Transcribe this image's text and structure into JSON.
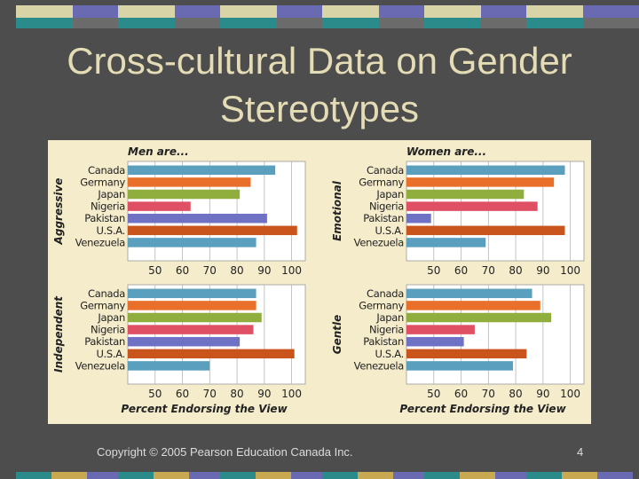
{
  "slide": {
    "title_line1": "Cross-cultural Data on Gender",
    "title_line2": "Stereotypes",
    "copyright": "Copyright © 2005 Pearson Education Canada Inc.",
    "page_number": "4"
  },
  "colors": {
    "background": "#4d4d4d",
    "title": "#e4dcb4",
    "figure_bg": "#f5eccc",
    "deco": [
      "#2b8a8a",
      "#6a6ab2",
      "#d9d4a8",
      "#c8a850"
    ]
  },
  "chart_data": [
    {
      "type": "bar",
      "orientation": "horizontal",
      "title": "Men are...",
      "ylabel": "Aggressive",
      "xlabel": "",
      "categories": [
        "Canada",
        "Germany",
        "Japan",
        "Nigeria",
        "Pakistan",
        "U.S.A.",
        "Venezuela"
      ],
      "values": [
        94,
        85,
        81,
        63,
        91,
        102,
        87
      ],
      "xlim": [
        40,
        105
      ],
      "xticks": [
        50,
        60,
        70,
        80,
        90,
        100
      ],
      "grid": true
    },
    {
      "type": "bar",
      "orientation": "horizontal",
      "title": "Women are...",
      "ylabel": "Emotional",
      "xlabel": "",
      "categories": [
        "Canada",
        "Germany",
        "Japan",
        "Nigeria",
        "Pakistan",
        "U.S.A.",
        "Venezuela"
      ],
      "values": [
        98,
        94,
        83,
        88,
        49,
        98,
        69
      ],
      "xlim": [
        40,
        105
      ],
      "xticks": [
        50,
        60,
        70,
        80,
        90,
        100
      ],
      "grid": true
    },
    {
      "type": "bar",
      "orientation": "horizontal",
      "title": "",
      "ylabel": "Independent",
      "xlabel": "Percent Endorsing the View",
      "categories": [
        "Canada",
        "Germany",
        "Japan",
        "Nigeria",
        "Pakistan",
        "U.S.A.",
        "Venezuela"
      ],
      "values": [
        87,
        87,
        89,
        86,
        81,
        101,
        70
      ],
      "xlim": [
        40,
        105
      ],
      "xticks": [
        50,
        60,
        70,
        80,
        90,
        100
      ],
      "grid": true
    },
    {
      "type": "bar",
      "orientation": "horizontal",
      "title": "",
      "ylabel": "Gentle",
      "xlabel": "Percent Endorsing the View",
      "categories": [
        "Canada",
        "Germany",
        "Japan",
        "Nigeria",
        "Pakistan",
        "U.S.A.",
        "Venezuela"
      ],
      "values": [
        86,
        89,
        93,
        65,
        61,
        84,
        79
      ],
      "xlim": [
        40,
        105
      ],
      "xticks": [
        50,
        60,
        70,
        80,
        90,
        100
      ],
      "grid": true
    }
  ],
  "bar_colors": [
    "#5b9fbf",
    "#e8702a",
    "#8fae3e",
    "#e05064",
    "#6f72c4",
    "#c9541c",
    "#5b9fbf"
  ]
}
